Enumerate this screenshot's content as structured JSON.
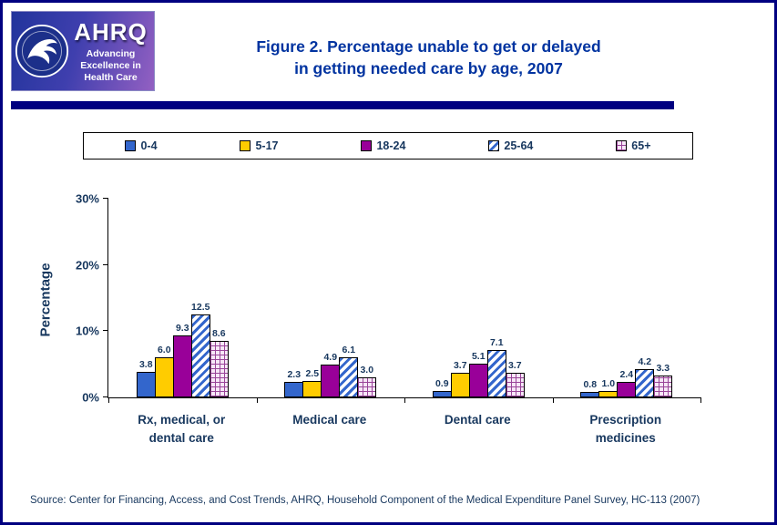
{
  "colors": {
    "page_border": "#000080",
    "title_text": "#0033a0",
    "label_text": "#17375e",
    "axis_line": "#000000"
  },
  "header": {
    "title_line1": "Figure 2. Percentage unable to get or delayed",
    "title_line2": "in getting needed care by age, 2007",
    "logo": {
      "org_abbr": "AHRQ",
      "tagline_line1": "Advancing",
      "tagline_line2": "Excellence in",
      "tagline_line3": "Health Care"
    }
  },
  "chart_data": {
    "type": "bar",
    "title": "Figure 2. Percentage unable to get or delayed in getting needed care by age, 2007",
    "ylabel": "Percentage",
    "ylim": [
      0,
      30
    ],
    "yticks": [
      {
        "value": 0,
        "label": "0%"
      },
      {
        "value": 10,
        "label": "10%"
      },
      {
        "value": 20,
        "label": "20%"
      },
      {
        "value": 30,
        "label": "30%"
      }
    ],
    "grid": false,
    "legend_position": "top",
    "categories": [
      "Rx, medical, or dental care",
      "Medical care",
      "Dental care",
      "Prescription medicines"
    ],
    "series": [
      {
        "name": "0-4",
        "values": [
          3.8,
          2.3,
          0.9,
          0.8
        ],
        "color": "#3366cc",
        "pattern": "solid"
      },
      {
        "name": "5-17",
        "values": [
          6.0,
          2.5,
          3.7,
          1.0
        ],
        "color": "#ffcc00",
        "pattern": "solid"
      },
      {
        "name": "18-24",
        "values": [
          9.3,
          4.9,
          5.1,
          2.4
        ],
        "color": "#990099",
        "pattern": "solid"
      },
      {
        "name": "25-64",
        "values": [
          12.5,
          6.1,
          7.1,
          4.2
        ],
        "color": "#3366cc",
        "pattern": "diagonal-stripes",
        "pattern_bg": "#ffffff"
      },
      {
        "name": "65+",
        "values": [
          8.6,
          3.0,
          3.7,
          3.3
        ],
        "color": "#994499",
        "pattern": "bricks",
        "pattern_bg": "#f6e6f6"
      }
    ]
  },
  "source": "Source: Center for Financing, Access, and Cost Trends, AHRQ, Household Component of the Medical Expenditure Panel Survey, HC-113 (2007)"
}
